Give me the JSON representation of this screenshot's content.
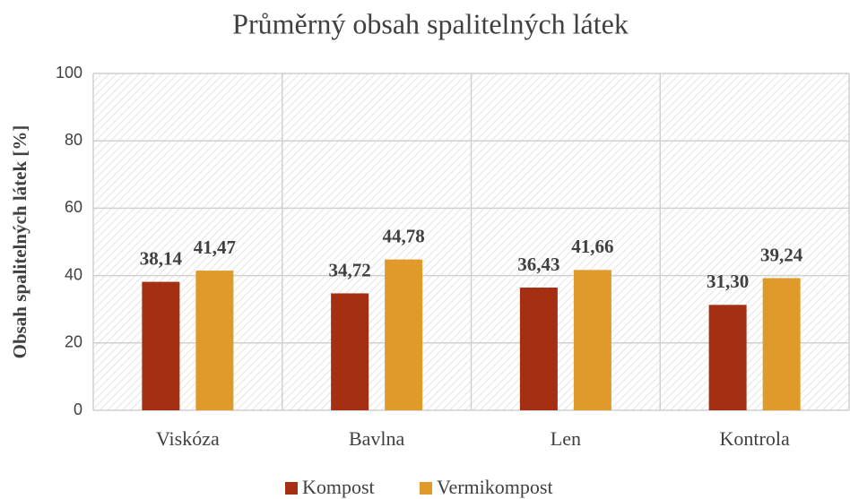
{
  "chart_data": {
    "type": "bar",
    "title": "Průměrný obsah spalitelných látek",
    "y_label": "Obsah spalitelných látek [%]",
    "categories": [
      "Viskóza",
      "Bavlna",
      "Len",
      "Kontrola"
    ],
    "series": [
      {
        "name": "Kompost",
        "color": "#a52f12",
        "values": [
          38.14,
          34.72,
          36.43,
          31.3
        ],
        "value_labels": [
          "38,14",
          "34,72",
          "36,43",
          "31,30"
        ]
      },
      {
        "name": "Vermikompost",
        "color": "#e09a2a",
        "values": [
          41.47,
          44.78,
          41.66,
          39.24
        ],
        "value_labels": [
          "41,47",
          "44,78",
          "41,66",
          "39,24"
        ]
      }
    ],
    "ylim": [
      0,
      100
    ],
    "yticks": [
      0,
      20,
      40,
      60,
      80,
      100
    ],
    "grid": true
  }
}
